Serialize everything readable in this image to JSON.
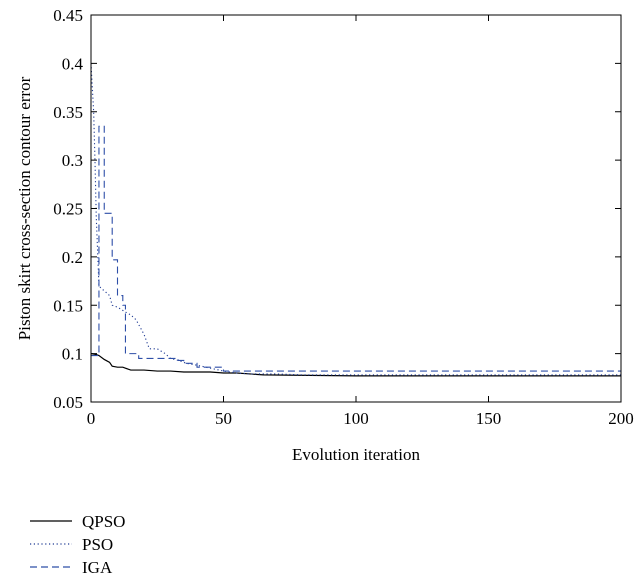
{
  "chart_data": {
    "type": "line",
    "xlabel": "Evolution iteration",
    "ylabel": "Piston skirt cross-section contour error",
    "xlim": [
      0,
      200
    ],
    "ylim": [
      0.05,
      0.45
    ],
    "xticks": [
      0,
      50,
      100,
      150,
      200
    ],
    "yticks": [
      0.05,
      0.1,
      0.15,
      0.2,
      0.25,
      0.3,
      0.35,
      0.4,
      0.45
    ],
    "ytick_labels": [
      "0.05",
      "0.1",
      "0.15",
      "0.2",
      "0.25",
      "0.3",
      "0.35",
      "0.4",
      "0.45"
    ],
    "grid": false,
    "legend_position": "bottom-left",
    "series": [
      {
        "name": "QPSO",
        "color": "#000000",
        "style": "solid",
        "x": [
          0,
          2,
          3,
          5,
          7,
          8,
          10,
          12,
          13,
          15,
          20,
          25,
          30,
          35,
          40,
          45,
          50,
          55,
          60,
          65,
          100,
          150,
          200
        ],
        "y": [
          0.1,
          0.099,
          0.098,
          0.094,
          0.091,
          0.087,
          0.086,
          0.086,
          0.085,
          0.083,
          0.083,
          0.082,
          0.082,
          0.081,
          0.081,
          0.081,
          0.08,
          0.08,
          0.079,
          0.078,
          0.077,
          0.077,
          0.077
        ]
      },
      {
        "name": "PSO",
        "color": "#1f3a93",
        "style": "dotted",
        "x": [
          0,
          1,
          1.5,
          2,
          3,
          4,
          5,
          7,
          8,
          10,
          13,
          15,
          17,
          20,
          22,
          25,
          28,
          30,
          33,
          36,
          40,
          45,
          50,
          55,
          60,
          70,
          80,
          90,
          100,
          150,
          200
        ],
        "y": [
          0.4,
          0.35,
          0.3,
          0.24,
          0.17,
          0.167,
          0.165,
          0.16,
          0.15,
          0.148,
          0.143,
          0.14,
          0.135,
          0.12,
          0.105,
          0.105,
          0.1,
          0.095,
          0.093,
          0.09,
          0.088,
          0.085,
          0.082,
          0.08,
          0.079,
          0.079,
          0.078,
          0.078,
          0.078,
          0.078,
          0.078
        ]
      },
      {
        "name": "IGA",
        "color": "#2e4fa8",
        "style": "dashed",
        "x": [
          0,
          3,
          3,
          5,
          5,
          8,
          8,
          10,
          10,
          12,
          12,
          13,
          13,
          18,
          18,
          33,
          33,
          35,
          35,
          40,
          40,
          50,
          50,
          200
        ],
        "y": [
          0.098,
          0.098,
          0.335,
          0.335,
          0.245,
          0.245,
          0.197,
          0.197,
          0.16,
          0.16,
          0.15,
          0.15,
          0.1,
          0.1,
          0.095,
          0.095,
          0.093,
          0.093,
          0.09,
          0.09,
          0.086,
          0.086,
          0.082,
          0.082
        ]
      }
    ]
  }
}
